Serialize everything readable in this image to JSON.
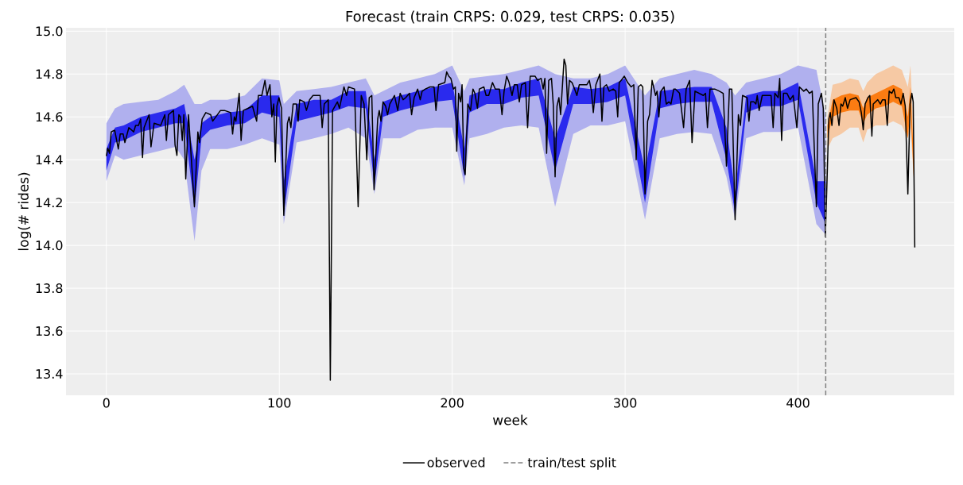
{
  "chart_data": {
    "type": "line",
    "title": "Forecast (train CRPS: 0.029, test CRPS: 0.035)",
    "xlabel": "week",
    "ylabel": "log(# rides)",
    "xlim": [
      -23.35,
      490.35
    ],
    "ylim": [
      13.3,
      15.016
    ],
    "xticks": [
      0,
      100,
      200,
      300,
      400
    ],
    "yticks": [
      {
        "value": 13.4,
        "label": "13.4"
      },
      {
        "value": 13.6,
        "label": "13.6"
      },
      {
        "value": 13.8,
        "label": "13.8"
      },
      {
        "value": 14.0,
        "label": "14.0"
      },
      {
        "value": 14.2,
        "label": "14.2"
      },
      {
        "value": 14.4,
        "label": "14.4"
      },
      {
        "value": 14.6,
        "label": "14.6"
      },
      {
        "value": 14.8,
        "label": "14.8"
      },
      {
        "value": 15.0,
        "label": "15.0"
      }
    ],
    "grid": true,
    "legend": "bottom",
    "ref_lines": [
      {
        "axis": "x",
        "value": 416,
        "label": "train/test split",
        "color": "#808080",
        "line_style": "dashed"
      }
    ],
    "series": [
      {
        "type": "line",
        "color": "#b0b0ee",
        "values": [
          null,
          null,
          null,
          null,
          null,
          null,
          null,
          null,
          null,
          null,
          null,
          null,
          null,
          null,
          null,
          null,
          null,
          null,
          null,
          null,
          null,
          null,
          null,
          null,
          null,
          null,
          null,
          null,
          null,
          null,
          null,
          null,
          null,
          null,
          null,
          null,
          null,
          null,
          null,
          null,
          null,
          null,
          null,
          null,
          null,
          null,
          null,
          null,
          null,
          null
        ],
        "x": [
          0,
          5,
          10,
          20,
          30,
          40,
          45,
          51,
          55,
          60,
          70,
          80,
          90,
          100,
          102.6,
          110,
          120,
          130,
          140,
          150,
          155,
          160,
          170,
          180,
          190,
          200,
          207,
          210,
          220,
          230,
          240,
          250,
          259.5,
          270,
          280,
          290,
          300,
          311.5,
          320,
          330,
          340,
          350,
          358.6,
          363.6,
          370,
          380,
          390,
          400,
          410.6,
          416
        ],
        "upper": [
          14.57,
          14.64,
          14.66,
          14.67,
          14.68,
          14.72,
          14.75,
          14.66,
          14.66,
          14.68,
          14.68,
          14.7,
          14.78,
          14.77,
          14.66,
          14.72,
          14.73,
          14.74,
          14.76,
          14.78,
          14.7,
          14.72,
          14.76,
          14.78,
          14.8,
          14.84,
          14.72,
          14.78,
          14.79,
          14.8,
          14.82,
          14.84,
          14.8,
          14.78,
          14.78,
          14.8,
          14.84,
          14.7,
          14.78,
          14.8,
          14.82,
          14.8,
          14.76,
          14.7,
          14.76,
          14.78,
          14.8,
          14.84,
          14.82,
          14.6
        ],
        "lower": [
          14.3,
          14.42,
          14.4,
          14.42,
          14.44,
          14.46,
          14.4,
          14.02,
          14.35,
          14.45,
          14.45,
          14.47,
          14.5,
          14.47,
          14.1,
          14.48,
          14.5,
          14.52,
          14.55,
          14.5,
          14.24,
          14.5,
          14.5,
          14.54,
          14.55,
          14.55,
          14.28,
          14.5,
          14.52,
          14.55,
          14.56,
          14.55,
          14.18,
          14.52,
          14.56,
          14.56,
          14.58,
          14.12,
          14.5,
          14.52,
          14.53,
          14.52,
          14.32,
          14.12,
          14.5,
          14.53,
          14.53,
          14.55,
          14.1,
          14.05
        ]
      },
      {
        "type": "line",
        "color": "#2a2aee",
        "values": [
          null,
          null,
          null,
          null,
          null,
          null,
          null,
          null,
          null,
          null,
          null,
          null,
          null,
          null,
          null,
          null,
          null,
          null,
          null,
          null,
          null,
          null,
          null,
          null,
          null,
          null,
          null,
          null,
          null,
          null,
          null,
          null,
          null,
          null,
          null,
          null,
          null,
          null,
          null,
          null,
          null,
          null,
          null,
          null,
          null,
          null,
          null,
          null,
          null,
          null
        ],
        "x": [
          0,
          5,
          10,
          20,
          30,
          40,
          45,
          51,
          55,
          60,
          70,
          80,
          90,
          100,
          102.6,
          110,
          120,
          130,
          140,
          150,
          155,
          160,
          170,
          180,
          190,
          200,
          207,
          210,
          220,
          230,
          240,
          250,
          259.5,
          270,
          280,
          290,
          300,
          311.5,
          320,
          330,
          340,
          350,
          358.6,
          363.6,
          370,
          380,
          390,
          400,
          410.6,
          416
        ],
        "upper": [
          14.45,
          14.55,
          14.56,
          14.6,
          14.62,
          14.64,
          14.66,
          14.4,
          14.57,
          14.6,
          14.62,
          14.63,
          14.7,
          14.7,
          14.3,
          14.66,
          14.68,
          14.68,
          14.72,
          14.72,
          14.4,
          14.67,
          14.7,
          14.72,
          14.74,
          14.76,
          14.45,
          14.7,
          14.73,
          14.73,
          14.76,
          14.78,
          14.5,
          14.74,
          14.73,
          14.74,
          14.78,
          14.35,
          14.72,
          14.73,
          14.74,
          14.74,
          14.55,
          14.25,
          14.7,
          14.72,
          14.72,
          14.76,
          14.3,
          14.3
        ],
        "lower": [
          14.35,
          14.48,
          14.49,
          14.53,
          14.55,
          14.57,
          14.57,
          14.17,
          14.5,
          14.54,
          14.56,
          14.57,
          14.62,
          14.6,
          14.15,
          14.58,
          14.6,
          14.62,
          14.65,
          14.64,
          14.28,
          14.6,
          14.63,
          14.65,
          14.67,
          14.68,
          14.32,
          14.62,
          14.66,
          14.66,
          14.69,
          14.7,
          14.35,
          14.66,
          14.66,
          14.67,
          14.7,
          14.2,
          14.64,
          14.66,
          14.67,
          14.67,
          14.4,
          14.15,
          14.62,
          14.65,
          14.65,
          14.68,
          14.2,
          14.1
        ]
      },
      {
        "type": "line",
        "color": "#f6c9a4",
        "values": [
          null,
          null,
          null,
          null,
          null,
          null,
          null,
          null,
          null,
          null,
          null,
          null,
          null,
          null
        ],
        "x": [
          417,
          420,
          425,
          430,
          435,
          437.7,
          440,
          445,
          450,
          455,
          460,
          463.5,
          465,
          467
        ],
        "upper": [
          14.6,
          14.75,
          14.76,
          14.78,
          14.77,
          14.72,
          14.76,
          14.8,
          14.82,
          14.84,
          14.82,
          14.74,
          14.84,
          14.5
        ],
        "lower": [
          14.45,
          14.5,
          14.52,
          14.55,
          14.55,
          14.48,
          14.54,
          14.56,
          14.56,
          14.58,
          14.56,
          14.5,
          14.55,
          14.3
        ]
      },
      {
        "type": "line",
        "color": "#fb7c12",
        "values": [
          null,
          null,
          null,
          null,
          null,
          null,
          null,
          null,
          null,
          null,
          null,
          null,
          null,
          null
        ],
        "x": [
          417,
          420,
          425,
          430,
          435,
          437.7,
          440,
          445,
          450,
          455,
          460,
          463.5,
          465,
          467
        ],
        "upper": [
          14.56,
          14.68,
          14.7,
          14.71,
          14.7,
          14.64,
          14.69,
          14.71,
          14.73,
          14.75,
          14.73,
          14.6,
          14.74,
          14.4
        ],
        "lower": [
          14.5,
          14.6,
          14.62,
          14.63,
          14.63,
          14.57,
          14.61,
          14.64,
          14.65,
          14.67,
          14.65,
          14.5,
          14.64,
          14.3
        ]
      },
      {
        "name": "observed",
        "color": "#000000",
        "x": [
          0,
          0.8,
          1.8,
          2.8,
          4.8,
          6.9,
          8,
          9.7,
          10.7,
          13,
          15.8,
          16.9,
          18.6,
          19.8,
          20.9,
          21.8,
          24.7,
          25.8,
          27.6,
          31.4,
          33.8,
          34.7,
          35.9,
          38.8,
          39.7,
          40.8,
          41.9,
          42.8,
          43.9,
          44.8,
          45.9,
          47.5,
          50.9,
          52.9,
          53.8,
          55.4,
          57.5,
          60.3,
          61.5,
          66,
          68.3,
          71.9,
          73,
          74,
          74.9,
          76.8,
          77.9,
          79.2,
          81.9,
          84.5,
          86.9,
          87.9,
          89.9,
          91.7,
          92.9,
          94.6,
          95.7,
          96.8,
          97.7,
          98.6,
          99.8,
          101.3,
          102.6,
          104.7,
          105.7,
          106.7,
          108,
          109.9,
          110.9,
          111.8,
          114.4,
          115.7,
          117.5,
          119.5,
          122.1,
          123.6,
          124.8,
          126,
          128.3,
          129.5,
          130.8,
          133.6,
          134.8,
          137.4,
          138.9,
          140,
          143.5,
          145.6,
          147.4,
          149,
          150.6,
          152,
          153.5,
          154.8,
          156.9,
          157.8,
          158.8,
          160,
          161.5,
          162.6,
          163.9,
          166.6,
          168.5,
          169.9,
          171.6,
          173.1,
          175.3,
          176.5,
          178,
          180,
          181.5,
          182.6,
          184.5,
          187.2,
          189.5,
          190.6,
          192.1,
          195.7,
          196.8,
          198,
          199.2,
          200.7,
          201.8,
          202.6,
          203.7,
          204.9,
          205.7,
          206.7,
          207.5,
          209,
          210.6,
          212,
          213.1,
          214.6,
          215.7,
          218.3,
          219.6,
          221.1,
          223.3,
          224.9,
          227.3,
          228.8,
          230,
          231.5,
          232.9,
          234.6,
          235.9,
          237.6,
          238.8,
          240.1,
          242.3,
          243.6,
          245.1,
          247.9,
          249.4,
          251.4,
          252.6,
          253.6,
          254.6,
          255.8,
          257.4,
          258.5,
          259.5,
          260.6,
          261.7,
          262.7,
          264.7,
          265.7,
          266.7,
          267.8,
          269.3,
          270.8,
          272.1,
          273.5,
          275.5,
          277.8,
          279.3,
          280.5,
          281.6,
          283.1,
          285.4,
          286.6,
          287.7,
          289.2,
          290.8,
          293.1,
          294.6,
          295.7,
          296.6,
          297.7,
          299.5,
          301.5,
          303.5,
          305,
          306.4,
          307.6,
          309.1,
          310.2,
          311.5,
          313,
          314.1,
          315.6,
          317.6,
          318.5,
          319.5,
          320.7,
          322.5,
          323.8,
          325.3,
          326.5,
          328.1,
          329.1,
          331.5,
          333.8,
          335.3,
          337.3,
          338.7,
          340.4,
          345.2,
          346.5,
          347.6,
          349.1,
          351.8,
          354.5,
          356.7,
          358.6,
          360.3,
          361.7,
          363.6,
          365.5,
          366.7,
          367.9,
          370.5,
          371.6,
          372.6,
          374.4,
          375.6,
          376.4,
          377.5,
          379.3,
          382.1,
          384.4,
          385.6,
          386.6,
          388.5,
          389.4,
          390.5,
          391.6,
          393.6,
          395.4,
          397.2,
          399.3,
          400.8,
          403.3,
          404.8,
          406.6,
          408.2,
          410.6,
          411.7,
          413.5,
          414.6,
          415.8,
          417.8,
          418.6,
          419.6,
          420.8,
          422.4,
          423.7,
          424.8,
          425.8,
          426.6,
          427.3,
          428.6,
          430.1,
          433.5,
          435.3,
          436.6,
          437.7,
          438.8,
          440.4,
          441.5,
          442.7,
          443.5,
          446.1,
          447.6,
          448.8,
          450.4,
          451.6,
          452.7,
          454.2,
          455.4,
          456.5,
          458.3,
          459.5,
          460.8,
          462,
          463.5,
          464.8,
          465.8,
          466.6,
          467.5
        ],
        "values": [
          14.417,
          14.454,
          14.43,
          14.53,
          14.538,
          14.45,
          14.52,
          14.52,
          14.48,
          14.55,
          14.53,
          14.56,
          14.56,
          14.59,
          14.41,
          14.55,
          14.61,
          14.46,
          14.57,
          14.56,
          14.61,
          14.49,
          14.61,
          14.63,
          14.47,
          14.42,
          14.61,
          14.6,
          14.49,
          14.61,
          14.31,
          14.61,
          14.18,
          14.53,
          14.48,
          14.59,
          14.62,
          14.61,
          14.58,
          14.63,
          14.63,
          14.62,
          14.52,
          14.6,
          14.58,
          14.71,
          14.49,
          14.63,
          14.64,
          14.65,
          14.58,
          14.7,
          14.7,
          14.77,
          14.7,
          14.75,
          14.6,
          14.66,
          14.39,
          14.65,
          14.69,
          14.64,
          14.14,
          14.57,
          14.6,
          14.55,
          14.66,
          14.66,
          14.58,
          14.68,
          14.67,
          14.63,
          14.68,
          14.7,
          14.7,
          14.7,
          14.55,
          14.66,
          14.68,
          13.37,
          14.63,
          14.67,
          14.64,
          14.74,
          14.7,
          14.74,
          14.73,
          14.18,
          14.7,
          14.66,
          14.4,
          14.69,
          14.7,
          14.26,
          14.59,
          14.63,
          14.58,
          14.67,
          14.65,
          14.61,
          14.66,
          14.7,
          14.63,
          14.71,
          14.68,
          14.69,
          14.71,
          14.61,
          14.69,
          14.73,
          14.68,
          14.72,
          14.73,
          14.74,
          14.74,
          14.63,
          14.75,
          14.76,
          14.81,
          14.79,
          14.78,
          14.73,
          14.74,
          14.44,
          14.71,
          14.67,
          14.75,
          14.36,
          14.33,
          14.66,
          14.63,
          14.73,
          14.71,
          14.64,
          14.73,
          14.74,
          14.7,
          14.7,
          14.76,
          14.73,
          14.73,
          14.61,
          14.72,
          14.79,
          14.76,
          14.7,
          14.75,
          14.75,
          14.67,
          14.75,
          14.76,
          14.55,
          14.79,
          14.79,
          14.77,
          14.78,
          14.73,
          14.78,
          14.43,
          14.77,
          14.78,
          14.65,
          14.32,
          14.65,
          14.69,
          14.61,
          14.87,
          14.84,
          14.66,
          14.77,
          14.76,
          14.73,
          14.7,
          14.75,
          14.75,
          14.75,
          14.77,
          14.72,
          14.62,
          14.75,
          14.8,
          14.58,
          14.74,
          14.75,
          14.72,
          14.73,
          14.72,
          14.6,
          14.76,
          14.77,
          14.79,
          14.76,
          14.74,
          14.75,
          14.4,
          14.74,
          14.75,
          14.74,
          14.24,
          14.58,
          14.61,
          14.77,
          14.7,
          14.72,
          14.6,
          14.72,
          14.74,
          14.66,
          14.67,
          14.66,
          14.73,
          14.73,
          14.71,
          14.55,
          14.73,
          14.77,
          14.48,
          14.72,
          14.7,
          14.71,
          14.55,
          14.73,
          14.73,
          14.72,
          14.71,
          14.37,
          14.73,
          14.73,
          14.12,
          14.61,
          14.56,
          14.7,
          14.69,
          14.58,
          14.67,
          14.67,
          14.66,
          14.7,
          14.63,
          14.7,
          14.7,
          14.7,
          14.55,
          14.71,
          14.69,
          14.78,
          14.49,
          14.71,
          14.71,
          14.68,
          14.7,
          14.55,
          14.74,
          14.72,
          14.73,
          14.71,
          14.72,
          14.18,
          14.66,
          14.71,
          14.64,
          14.04,
          14.59,
          14.62,
          14.56,
          14.68,
          14.64,
          14.56,
          14.66,
          14.65,
          14.67,
          14.69,
          14.64,
          14.68,
          14.69,
          14.67,
          14.62,
          14.54,
          14.66,
          14.69,
          14.7,
          14.51,
          14.66,
          14.68,
          14.66,
          14.68,
          14.68,
          14.56,
          14.72,
          14.71,
          14.73,
          14.69,
          14.69,
          14.66,
          14.71,
          14.65,
          14.24,
          14.66,
          14.71,
          14.67,
          13.99
        ]
      }
    ]
  }
}
